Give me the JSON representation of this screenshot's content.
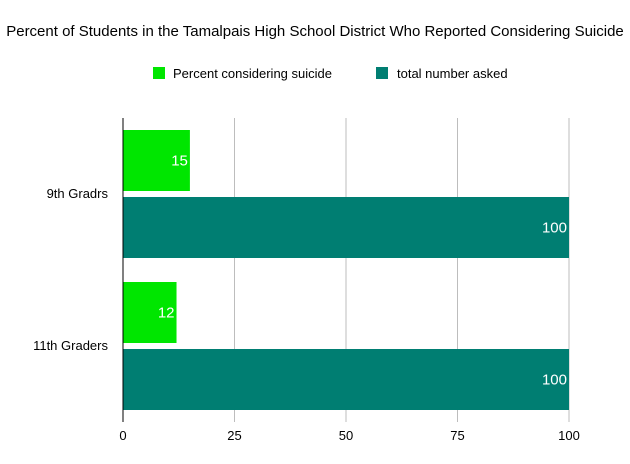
{
  "chart_data": {
    "type": "bar",
    "orientation": "horizontal",
    "title": "Percent of Students in the Tamalpais High School District Who Reported Considering Suicide",
    "categories": [
      "9th Gradrs",
      "11th Graders"
    ],
    "series": [
      {
        "name": "Percent considering suicide",
        "values": [
          15,
          12
        ],
        "color": "#00e600"
      },
      {
        "name": "total number asked",
        "values": [
          100,
          100
        ],
        "color": "#007e72"
      }
    ],
    "x_ticks": [
      "0",
      "25",
      "50",
      "75",
      "100"
    ],
    "xlim": [
      0,
      100
    ],
    "grid": true,
    "legend_position": "top"
  }
}
